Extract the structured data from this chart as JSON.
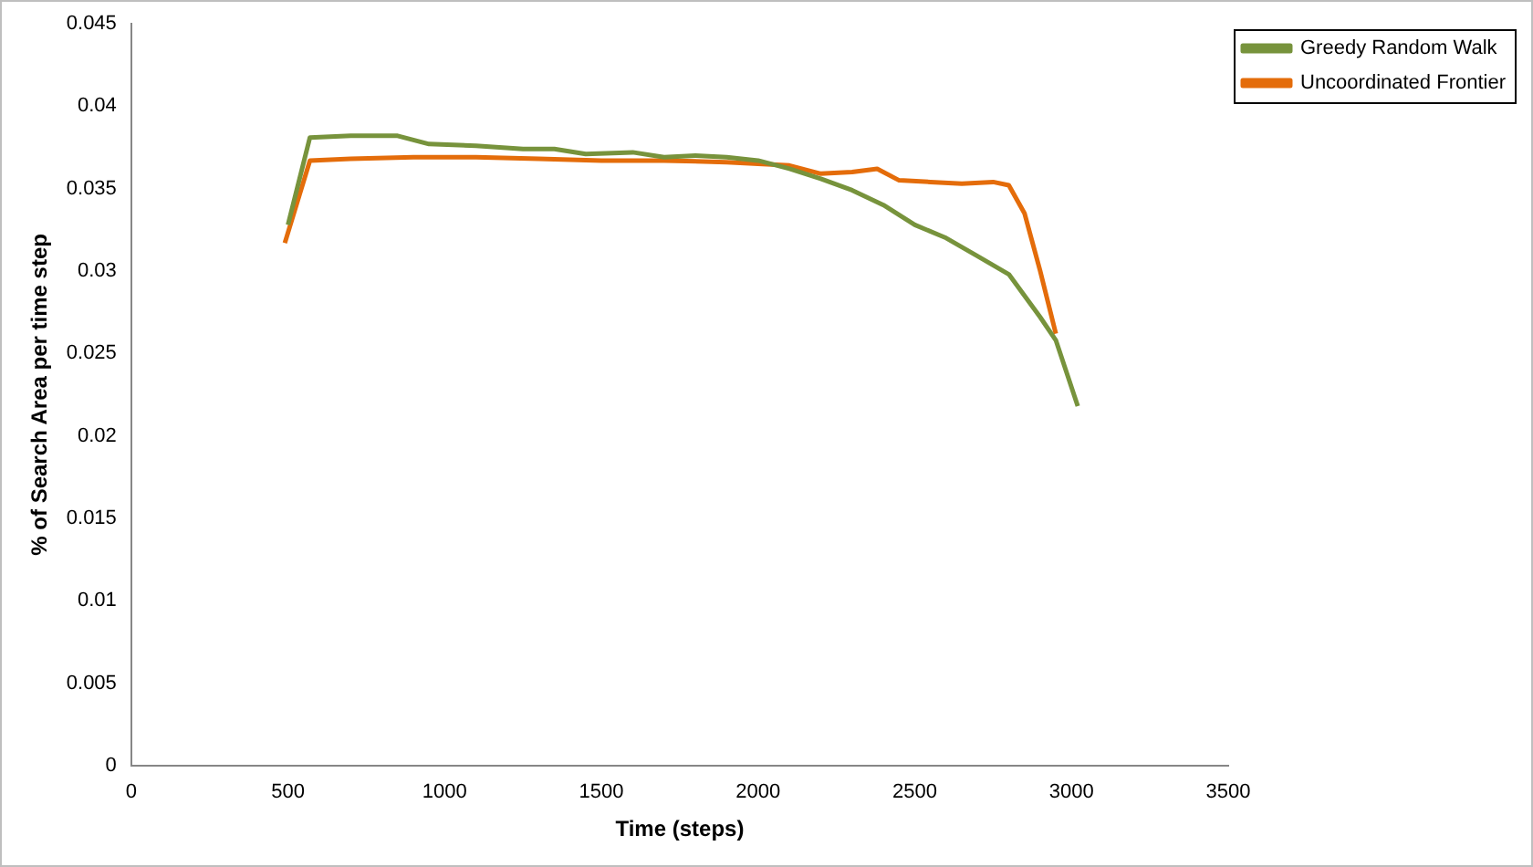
{
  "chart_data": {
    "type": "line",
    "xlabel": "Time (steps)",
    "ylabel": "% of Search Area per time step",
    "xlim": [
      0,
      3500
    ],
    "xticks": [
      0,
      500,
      1000,
      1500,
      2000,
      2500,
      3000,
      3500
    ],
    "ylim": [
      0,
      0.045
    ],
    "yticks": [
      0,
      0.005,
      0.01,
      0.015,
      0.02,
      0.025,
      0.03,
      0.035,
      0.04,
      0.045
    ],
    "grid": false,
    "legend": "top right",
    "marker": "none",
    "line_style": "solid",
    "series": [
      {
        "name": "Greedy Random Walk",
        "color": "#77933c",
        "x": [
          500,
          570,
          700,
          850,
          950,
          1100,
          1250,
          1350,
          1450,
          1600,
          1700,
          1800,
          1900,
          2000,
          2100,
          2200,
          2300,
          2400,
          2500,
          2600,
          2700,
          2800,
          2900,
          2950,
          3020
        ],
        "values": [
          0.0328,
          0.0381,
          0.0382,
          0.0382,
          0.0377,
          0.0376,
          0.0374,
          0.0374,
          0.0371,
          0.0372,
          0.0369,
          0.037,
          0.0369,
          0.0367,
          0.0362,
          0.0356,
          0.0349,
          0.034,
          0.0328,
          0.032,
          0.0309,
          0.0298,
          0.0272,
          0.0258,
          0.0218
        ]
      },
      {
        "name": "Uncoordinated Frontier",
        "color": "#e46c0a",
        "x": [
          490,
          570,
          700,
          900,
          1100,
          1300,
          1500,
          1700,
          1900,
          2000,
          2100,
          2200,
          2300,
          2380,
          2450,
          2550,
          2650,
          2750,
          2800,
          2850,
          2900,
          2950
        ],
        "values": [
          0.0317,
          0.0367,
          0.0368,
          0.0369,
          0.0369,
          0.0368,
          0.0367,
          0.0367,
          0.0366,
          0.0365,
          0.0364,
          0.0359,
          0.036,
          0.0362,
          0.0355,
          0.0354,
          0.0353,
          0.0354,
          0.0352,
          0.0335,
          0.03,
          0.0262
        ]
      }
    ]
  }
}
